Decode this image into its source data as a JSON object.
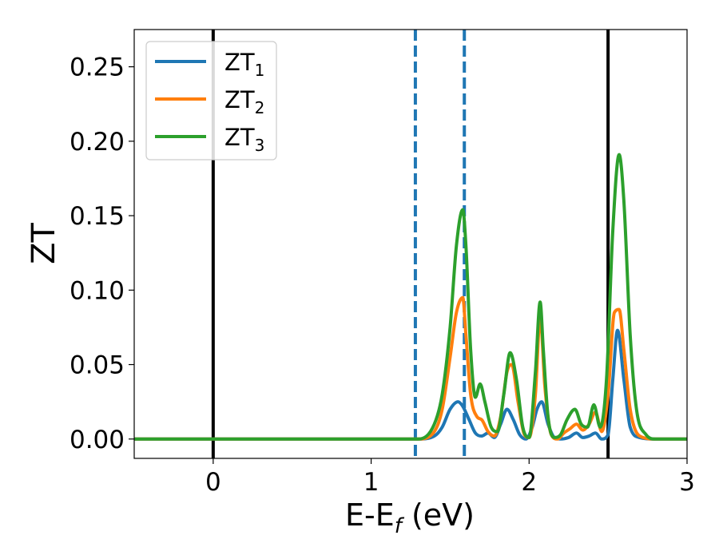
{
  "chart_data": {
    "type": "line",
    "xlabel": "E-E",
    "xlabel_sub": "f",
    "xlabel_unit": " (eV)",
    "ylabel": "ZT",
    "xlim": [
      -0.5,
      3.0
    ],
    "ylim": [
      -0.013,
      0.275
    ],
    "xticks": [
      0,
      1,
      2,
      3
    ],
    "xtick_labels": [
      "0",
      "1",
      "2",
      "3"
    ],
    "yticks": [
      0.0,
      0.05,
      0.1,
      0.15,
      0.2,
      0.25
    ],
    "ytick_labels": [
      "0.00",
      "0.05",
      "0.10",
      "0.15",
      "0.20",
      "0.25"
    ],
    "grid": false,
    "legend_position": "upper-left",
    "vlines": [
      {
        "x": 0.0,
        "style": "solid",
        "color": "#000000"
      },
      {
        "x": 2.5,
        "style": "solid",
        "color": "#000000"
      },
      {
        "x": 1.28,
        "style": "dashed",
        "color": "#1f77b4"
      },
      {
        "x": 1.59,
        "style": "dashed",
        "color": "#1f77b4"
      }
    ],
    "series": [
      {
        "name": "ZT",
        "sub": "1",
        "color": "#1f77b4",
        "x": [
          -0.5,
          1.3,
          1.4,
          1.45,
          1.5,
          1.55,
          1.58,
          1.62,
          1.66,
          1.7,
          1.74,
          1.78,
          1.82,
          1.86,
          1.9,
          1.94,
          1.98,
          2.02,
          2.05,
          2.08,
          2.12,
          2.16,
          2.2,
          2.25,
          2.3,
          2.34,
          2.38,
          2.42,
          2.46,
          2.5,
          2.53,
          2.56,
          2.6,
          2.64,
          2.7,
          2.8,
          3.0
        ],
        "y": [
          0.0,
          0.0,
          0.002,
          0.008,
          0.02,
          0.025,
          0.022,
          0.013,
          0.004,
          0.002,
          0.004,
          0.001,
          0.01,
          0.02,
          0.013,
          0.003,
          0.0,
          0.008,
          0.02,
          0.025,
          0.01,
          0.001,
          0.0,
          0.001,
          0.004,
          0.001,
          0.002,
          0.004,
          0.0,
          0.003,
          0.04,
          0.073,
          0.04,
          0.008,
          0.001,
          0.0,
          0.0
        ]
      },
      {
        "name": "ZT",
        "sub": "2",
        "color": "#ff7f0e",
        "x": [
          -0.5,
          1.3,
          1.4,
          1.45,
          1.5,
          1.54,
          1.58,
          1.6,
          1.63,
          1.67,
          1.7,
          1.74,
          1.78,
          1.82,
          1.86,
          1.89,
          1.93,
          1.97,
          2.0,
          2.04,
          2.07,
          2.1,
          2.14,
          2.18,
          2.22,
          2.26,
          2.3,
          2.34,
          2.38,
          2.42,
          2.46,
          2.5,
          2.54,
          2.57,
          2.6,
          2.64,
          2.7,
          2.8,
          3.0
        ],
        "y": [
          0.0,
          0.0,
          0.005,
          0.02,
          0.055,
          0.085,
          0.095,
          0.07,
          0.03,
          0.015,
          0.013,
          0.005,
          0.002,
          0.015,
          0.045,
          0.05,
          0.025,
          0.003,
          0.001,
          0.03,
          0.082,
          0.035,
          0.003,
          0.0,
          0.004,
          0.007,
          0.01,
          0.006,
          0.01,
          0.018,
          0.005,
          0.03,
          0.085,
          0.087,
          0.06,
          0.02,
          0.002,
          0.0,
          0.0
        ]
      },
      {
        "name": "ZT",
        "sub": "3",
        "color": "#2ca02c",
        "x": [
          -0.5,
          1.3,
          1.4,
          1.45,
          1.5,
          1.54,
          1.58,
          1.6,
          1.63,
          1.66,
          1.69,
          1.72,
          1.76,
          1.8,
          1.84,
          1.88,
          1.92,
          1.96,
          2.0,
          2.04,
          2.07,
          2.09,
          2.12,
          2.16,
          2.2,
          2.24,
          2.29,
          2.33,
          2.37,
          2.41,
          2.45,
          2.49,
          2.53,
          2.57,
          2.6,
          2.64,
          2.68,
          2.74,
          2.8,
          3.0
        ],
        "y": [
          0.0,
          0.0,
          0.01,
          0.03,
          0.075,
          0.13,
          0.154,
          0.13,
          0.06,
          0.028,
          0.037,
          0.025,
          0.008,
          0.005,
          0.03,
          0.058,
          0.04,
          0.008,
          0.001,
          0.045,
          0.092,
          0.06,
          0.015,
          0.001,
          0.003,
          0.013,
          0.02,
          0.01,
          0.008,
          0.023,
          0.008,
          0.04,
          0.14,
          0.191,
          0.16,
          0.07,
          0.02,
          0.003,
          0.0,
          0.0
        ]
      }
    ]
  }
}
